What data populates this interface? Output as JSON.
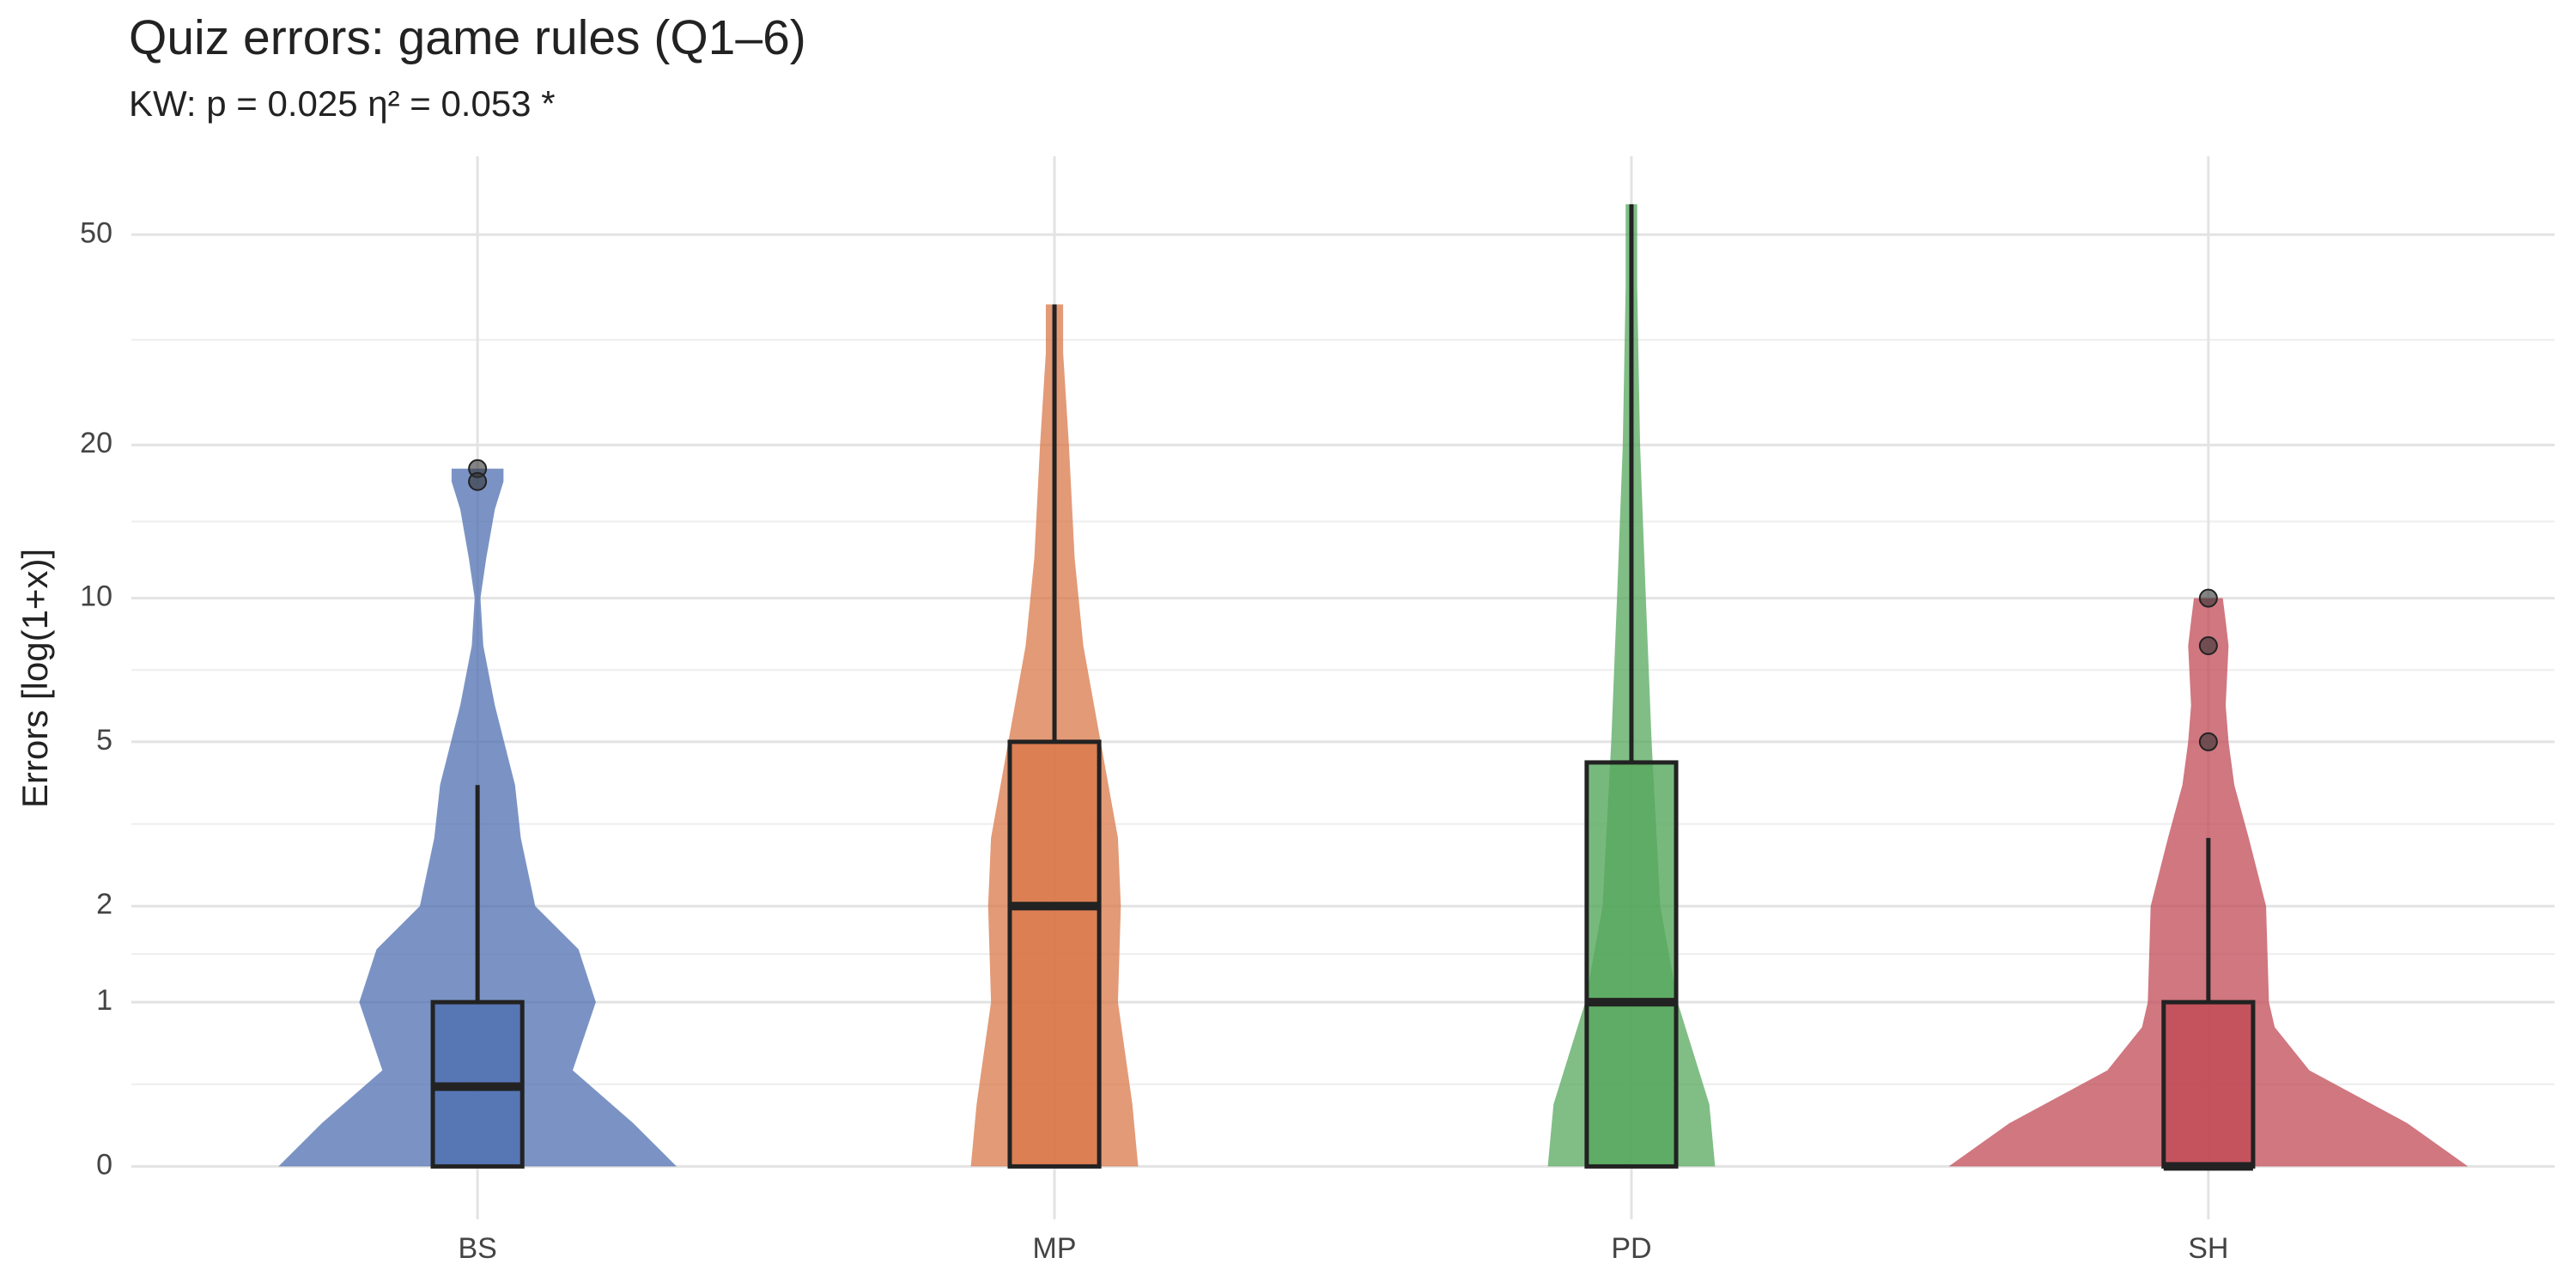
{
  "chart_data": {
    "type": "violin",
    "title": "Quiz errors: game rules (Q1–6)",
    "subtitle": "KW: p = 0.025  η² = 0.053  *",
    "y_label": "Errors [log(1+x)]",
    "y_scale": "log1p",
    "ylim": [
      -0.2,
      70
    ],
    "yticks": [
      0,
      1,
      2,
      5,
      10,
      20,
      50
    ],
    "grid": true,
    "categories": [
      "BS",
      "MP",
      "PD",
      "SH"
    ],
    "groups": [
      {
        "color": "#4f6fb0",
        "min": 0,
        "q1": 0,
        "median": 0.4,
        "q3": 1,
        "max": 4,
        "outliers": [
          18,
          17
        ],
        "violin": {
          "y": [
            0,
            0.2,
            0.5,
            1,
            1.5,
            2,
            3,
            4,
            6,
            8,
            10,
            12,
            15,
            17,
            18
          ],
          "width": [
            0.69,
            0.54,
            0.33,
            0.41,
            0.35,
            0.2,
            0.15,
            0.13,
            0.06,
            0.02,
            0.01,
            0.03,
            0.06,
            0.09,
            0.09
          ]
        }
      },
      {
        "color": "#d9784a",
        "min": 0,
        "q1": 0,
        "median": 2,
        "q3": 5,
        "max": 37,
        "outliers": [],
        "violin": {
          "y": [
            0,
            0.3,
            1,
            2,
            3,
            5,
            8,
            12,
            20,
            30,
            37
          ],
          "width": [
            0.29,
            0.27,
            0.22,
            0.23,
            0.22,
            0.16,
            0.1,
            0.07,
            0.05,
            0.03,
            0.03
          ]
        }
      },
      {
        "color": "#55a85d",
        "min": 0,
        "q1": 0,
        "median": 1,
        "q3": 4.5,
        "max": 57,
        "outliers": [],
        "violin": {
          "y": [
            0,
            0.3,
            1,
            2,
            5,
            10,
            20,
            40,
            57
          ],
          "width": [
            0.29,
            0.27,
            0.16,
            0.1,
            0.07,
            0.05,
            0.03,
            0.02,
            0.02
          ]
        }
      },
      {
        "color": "#c04a55",
        "min": 0,
        "q1": 0,
        "median": 0,
        "q3": 1,
        "max": 3,
        "outliers": [
          10,
          8,
          5
        ],
        "violin": {
          "y": [
            0,
            0.2,
            0.5,
            0.8,
            1,
            2,
            3,
            4,
            5,
            6,
            8,
            9,
            10
          ],
          "width": [
            0.9,
            0.69,
            0.35,
            0.23,
            0.21,
            0.2,
            0.14,
            0.09,
            0.07,
            0.06,
            0.07,
            0.06,
            0.05
          ]
        }
      }
    ]
  }
}
